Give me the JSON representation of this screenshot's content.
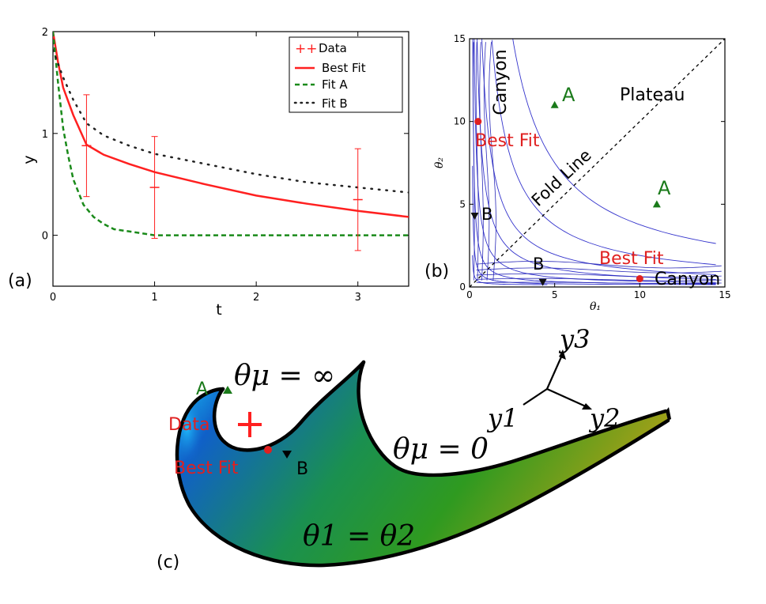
{
  "chart_data": [
    {
      "panel_label": "(a)",
      "type": "line",
      "xlabel": "t",
      "ylabel": "y",
      "xlim": [
        0,
        3.5
      ],
      "ylim": [
        -0.5,
        2.0
      ],
      "xticks": [
        "0",
        "1",
        "2",
        "3"
      ],
      "yticks": [
        "0",
        "1",
        "2"
      ],
      "legend": {
        "placement": "top-right",
        "entries": [
          "Data",
          "Best Fit",
          "Fit A",
          "Fit B"
        ],
        "data_marker": "++"
      },
      "data": {
        "name": "Data",
        "points": [
          {
            "t": 0.33,
            "y": 0.88,
            "err": 0.5
          },
          {
            "t": 1.0,
            "y": 0.47,
            "err": 0.5
          },
          {
            "t": 3.0,
            "y": 0.35,
            "err": 0.5
          }
        ]
      },
      "series": [
        {
          "name": "Best Fit",
          "color": "#ff2020",
          "dash": "solid",
          "x": [
            0,
            0.05,
            0.1,
            0.2,
            0.33,
            0.5,
            0.75,
            1.0,
            1.5,
            2.0,
            2.5,
            3.0,
            3.5
          ],
          "y": [
            2.0,
            1.7,
            1.45,
            1.18,
            0.89,
            0.79,
            0.7,
            0.62,
            0.5,
            0.39,
            0.31,
            0.24,
            0.18
          ]
        },
        {
          "name": "Fit A",
          "color": "#1a8a1a",
          "dash": "dashed",
          "x": [
            0,
            0.05,
            0.1,
            0.15,
            0.2,
            0.3,
            0.4,
            0.5,
            0.6,
            0.8,
            1.0,
            1.5,
            2.0,
            3.0,
            3.5
          ],
          "y": [
            2.0,
            1.5,
            1.05,
            0.78,
            0.55,
            0.3,
            0.18,
            0.11,
            0.06,
            0.03,
            0.0,
            0.0,
            0.0,
            0.0,
            0.0
          ]
        },
        {
          "name": "Fit B",
          "color": "#222222",
          "dash": "dotted",
          "x": [
            0,
            0.1,
            0.2,
            0.33,
            0.5,
            0.75,
            1.0,
            1.5,
            2.0,
            2.5,
            3.0,
            3.5
          ],
          "y": [
            1.82,
            1.55,
            1.33,
            1.1,
            0.98,
            0.88,
            0.8,
            0.7,
            0.6,
            0.52,
            0.47,
            0.42
          ]
        }
      ]
    },
    {
      "panel_label": "(b)",
      "type": "contour",
      "xlabel": "θ₁",
      "ylabel": "θ₂",
      "xlim": [
        0,
        15
      ],
      "ylim": [
        0,
        15
      ],
      "xticks": [
        "0",
        "5",
        "10",
        "15"
      ],
      "yticks": [
        "0",
        "5",
        "10",
        "15"
      ],
      "fold_line": {
        "label": "Fold Line",
        "from": [
          0,
          0
        ],
        "to": [
          15,
          15
        ]
      },
      "markers": [
        {
          "label": "Best Fit",
          "shape": "circle",
          "color": "#e02020",
          "x": 0.5,
          "y": 10
        },
        {
          "label": "Best Fit",
          "shape": "circle",
          "color": "#e02020",
          "x": 10,
          "y": 0.5
        },
        {
          "label": "A",
          "shape": "triangle-up",
          "color": "#1a7a1a",
          "x": 5,
          "y": 11
        },
        {
          "label": "A",
          "shape": "triangle-up",
          "color": "#1a7a1a",
          "x": 11,
          "y": 5
        },
        {
          "label": "B",
          "shape": "triangle-down",
          "color": "#111111",
          "x": 0.3,
          "y": 4.3
        },
        {
          "label": "B",
          "shape": "triangle-down",
          "color": "#111111",
          "x": 4.3,
          "y": 0.3
        }
      ],
      "region_labels": {
        "canyon_vertical": "Canyon",
        "canyon_horizontal": "Canyon",
        "plateau": "Plateau"
      },
      "contour_levels": [
        0.3,
        0.6,
        1.0,
        1.5,
        2.2,
        3.0,
        4.2,
        6.0
      ]
    },
    {
      "panel_label": "(c)",
      "type": "manifold",
      "labels": {
        "theta_mu_inf": "θμ = ∞",
        "theta_mu_zero": "θμ = 0",
        "theta_equal": "θ1 = θ2",
        "data": "Data",
        "best_fit": "Best Fit",
        "a": "A",
        "b": "B"
      },
      "axes": {
        "y1": "y1",
        "y2": "y2",
        "y3": "y3"
      }
    }
  ]
}
